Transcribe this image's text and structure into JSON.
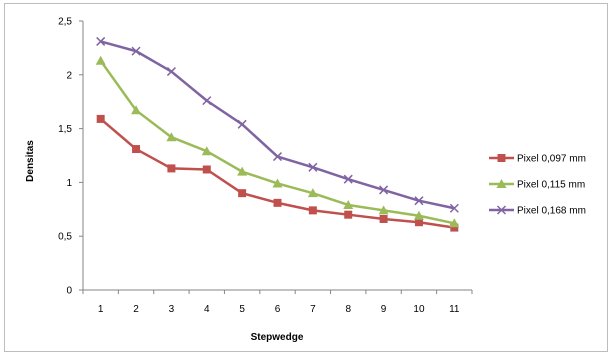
{
  "chart_data": {
    "type": "line",
    "title": "",
    "xlabel": "Stepwedge",
    "ylabel": "Densitas",
    "x": [
      1,
      2,
      3,
      4,
      5,
      6,
      7,
      8,
      9,
      10,
      11
    ],
    "x_tick_labels": [
      "1",
      "2",
      "3",
      "4",
      "5",
      "6",
      "7",
      "8",
      "9",
      "10",
      "11"
    ],
    "ylim": [
      0,
      2.5
    ],
    "y_ticks": [
      0,
      0.5,
      1,
      1.5,
      2,
      2.5
    ],
    "y_tick_labels": [
      "0",
      "0,5",
      "1",
      "1,5",
      "2",
      "2,5"
    ],
    "grid": false,
    "legend_position": "right",
    "series": [
      {
        "name": "Pixel 0,097 mm",
        "color": "#c0504d",
        "marker": "square",
        "values": [
          1.59,
          1.31,
          1.13,
          1.12,
          0.9,
          0.81,
          0.74,
          0.7,
          0.66,
          0.63,
          0.58
        ]
      },
      {
        "name": "Pixel 0,115 mm",
        "color": "#9bbb59",
        "marker": "triangle",
        "values": [
          2.13,
          1.67,
          1.42,
          1.29,
          1.1,
          0.99,
          0.9,
          0.79,
          0.74,
          0.69,
          0.62
        ]
      },
      {
        "name": "Pixel 0,168 mm",
        "color": "#8064a2",
        "marker": "x",
        "values": [
          2.31,
          2.22,
          2.03,
          1.76,
          1.54,
          1.24,
          1.14,
          1.03,
          0.93,
          0.83,
          0.76
        ]
      }
    ]
  }
}
